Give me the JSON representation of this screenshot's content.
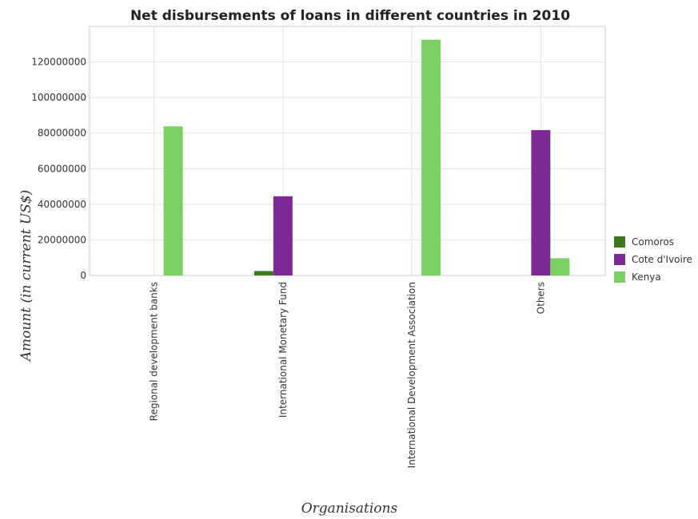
{
  "chart_data": {
    "type": "bar",
    "title": "Net disbursements of loans in different countries in 2010",
    "xlabel": "Organisations",
    "ylabel": "Amount (in current US$)",
    "categories": [
      "Regional development banks",
      "International Monetary Fund",
      "International Development Association",
      "Others"
    ],
    "series": [
      {
        "name": "Comoros",
        "color": "#3d7a1e",
        "values": [
          0,
          2500000,
          0,
          0
        ]
      },
      {
        "name": "Cote d'Ivoire",
        "color": "#7d2a96",
        "values": [
          0,
          44500000,
          0,
          81700000
        ]
      },
      {
        "name": "Kenya",
        "color": "#7ccf62",
        "values": [
          83800000,
          0,
          132500000,
          9700000
        ]
      }
    ],
    "ylim": [
      0,
      140000000
    ],
    "yticks": [
      0,
      20000000,
      40000000,
      60000000,
      80000000,
      100000000,
      120000000
    ],
    "ytick_labels": [
      "0",
      "20000000",
      "40000000",
      "60000000",
      "80000000",
      "100000000",
      "120000000"
    ],
    "grid": true,
    "legend": "right"
  }
}
